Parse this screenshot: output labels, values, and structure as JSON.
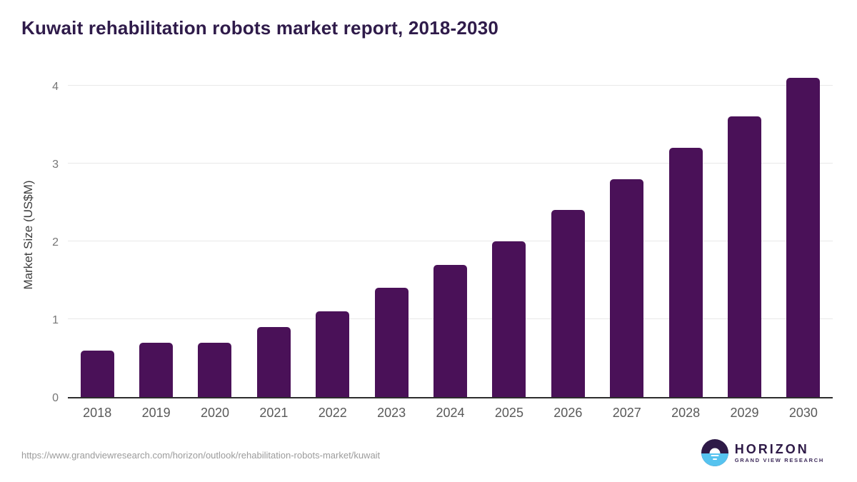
{
  "title": "Kuwait rehabilitation robots market report, 2018-2030",
  "chart_data": {
    "type": "bar",
    "categories": [
      "2018",
      "2019",
      "2020",
      "2021",
      "2022",
      "2023",
      "2024",
      "2025",
      "2026",
      "2027",
      "2028",
      "2029",
      "2030"
    ],
    "values": [
      0.6,
      0.7,
      0.7,
      0.9,
      1.1,
      1.4,
      1.7,
      2.0,
      2.4,
      2.8,
      3.2,
      3.6,
      4.1
    ],
    "title": "Kuwait rehabilitation robots market report, 2018-2030",
    "xlabel": "",
    "ylabel": "Market Size (US$M)",
    "ylim": [
      0,
      4.2
    ],
    "yticks": [
      0,
      1,
      2,
      3,
      4
    ],
    "grid": true,
    "legend": false,
    "bar_color": "#4a1158"
  },
  "footer": {
    "source_url": "https://www.grandviewresearch.com/horizon/outlook/rehabilitation-robots-market/kuwait",
    "logo": {
      "brand": "HORIZON",
      "tagline": "GRAND VIEW RESEARCH"
    }
  },
  "colors": {
    "title_text": "#2f1b4a",
    "bar": "#4a1158",
    "axis_line": "#2d2d2d",
    "gridline": "#e8e8e8",
    "tick_label": "#767676",
    "x_label": "#595959",
    "url_text": "#9b9b9b",
    "logo_purple": "#2e1a47",
    "logo_blue": "#56c3ef"
  }
}
